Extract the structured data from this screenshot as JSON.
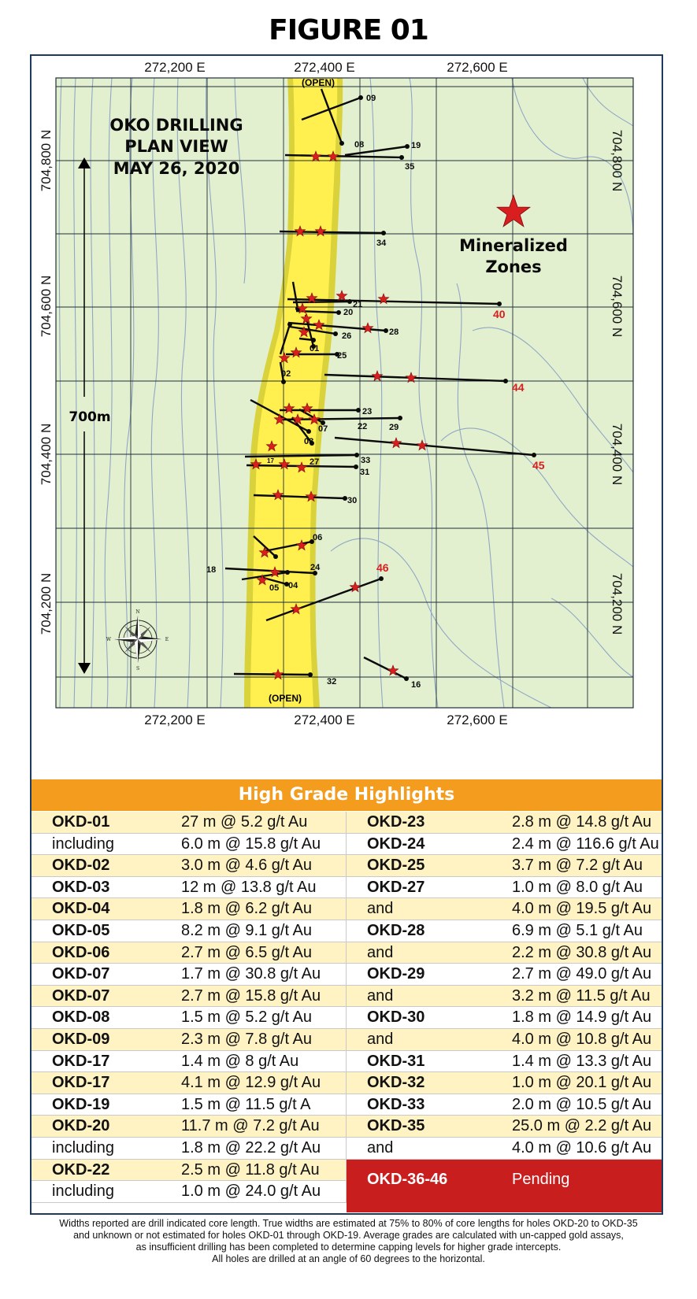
{
  "figure_title": "FIGURE 01",
  "map": {
    "title_lines": [
      "OKO DRILLING",
      "PLAN VIEW",
      "MAY 26, 2020"
    ],
    "scale_label": "700m",
    "legend_label_lines": [
      "Mineralized",
      "Zones"
    ],
    "open_label": "(OPEN)",
    "easting_labels": [
      "272,200 E",
      "272,400 E",
      "272,600 E"
    ],
    "northing_labels": [
      "704,800 N",
      "704,600 N",
      "704,400 N",
      "704,200 N"
    ],
    "compass_letters": [
      "N",
      "E",
      "S",
      "W"
    ],
    "colors": {
      "background": "#e3f0d0",
      "zone_outer": "#d9d23a",
      "zone_inner": "#ffef4f",
      "contour": "#8fa7c4",
      "grid": "#1f2e3a",
      "star": "#d81e1e",
      "pending_label": "#d81e1e"
    },
    "drill_holes": [
      "09",
      "08",
      "19",
      "35",
      "34",
      "21",
      "40",
      "20",
      "28",
      "26",
      "01",
      "25",
      "02",
      "44",
      "23",
      "22",
      "29",
      "07",
      "03",
      "45",
      "33",
      "17",
      "27",
      "31",
      "30",
      "06",
      "18",
      "24",
      "05",
      "04",
      "46",
      "32",
      "16"
    ],
    "pending_holes": [
      "40",
      "44",
      "45",
      "46"
    ]
  },
  "highlights": {
    "header": "High Grade Highlights",
    "left": [
      {
        "hole": "OKD-01",
        "interval": "27 m @ 5.2 g/t Au"
      },
      {
        "hole": "including",
        "interval": "6.0 m @ 15.8 g/t Au"
      },
      {
        "hole": "OKD-02",
        "interval": "3.0 m @ 4.6 g/t Au"
      },
      {
        "hole": "OKD-03",
        "interval": "12 m @ 13.8 g/t Au"
      },
      {
        "hole": "OKD-04",
        "interval": "1.8 m @ 6.2 g/t Au"
      },
      {
        "hole": "OKD-05",
        "interval": "8.2 m @ 9.1 g/t Au"
      },
      {
        "hole": "OKD-06",
        "interval": "2.7 m @ 6.5 g/t Au"
      },
      {
        "hole": "OKD-07",
        "interval": "1.7 m @ 30.8 g/t Au"
      },
      {
        "hole": "OKD-07",
        "interval": "2.7 m @ 15.8 g/t Au"
      },
      {
        "hole": "OKD-08",
        "interval": "1.5 m @ 5.2 g/t Au"
      },
      {
        "hole": "OKD-09",
        "interval": "2.3 m @ 7.8 g/t Au"
      },
      {
        "hole": "OKD-17",
        "interval": "1.4 m @ 8 g/t Au"
      },
      {
        "hole": "OKD-17",
        "interval": "4.1 m @ 12.9 g/t Au"
      },
      {
        "hole": "OKD-19",
        "interval": "1.5 m @ 11.5 g/t A"
      },
      {
        "hole": "OKD-20",
        "interval": "11.7 m @ 7.2 g/t Au"
      },
      {
        "hole": "including",
        "interval": "1.8 m @ 22.2 g/t Au"
      },
      {
        "hole": "OKD-22",
        "interval": "2.5 m @ 11.8 g/t Au"
      },
      {
        "hole": "including",
        "interval": "1.0 m @ 24.0 g/t Au"
      }
    ],
    "right": [
      {
        "hole": "OKD-23",
        "interval": "2.8 m @ 14.8 g/t Au"
      },
      {
        "hole": "OKD-24",
        "interval": "2.4 m @ 116.6 g/t Au"
      },
      {
        "hole": "OKD-25",
        "interval": "3.7 m @ 7.2  g/t Au"
      },
      {
        "hole": "OKD-27",
        "interval": "1.0 m @ 8.0 g/t Au"
      },
      {
        "hole": "and",
        "interval": "4.0 m @ 19.5 g/t Au"
      },
      {
        "hole": "OKD-28",
        "interval": "6.9 m @ 5.1 g/t Au"
      },
      {
        "hole": "and",
        "interval": "2.2 m @ 30.8 g/t Au"
      },
      {
        "hole": "OKD-29",
        "interval": "2.7 m @ 49.0 g/t Au"
      },
      {
        "hole": "and",
        "interval": "3.2 m @ 11.5 g/t Au"
      },
      {
        "hole": "OKD-30",
        "interval": "1.8 m @ 14.9 g/t Au"
      },
      {
        "hole": "and",
        "interval": "4.0 m @ 10.8 g/t Au"
      },
      {
        "hole": "OKD-31",
        "interval": "1.4 m @ 13.3 g/t Au"
      },
      {
        "hole": "OKD-32",
        "interval": "1.0 m @ 20.1 g/t Au"
      },
      {
        "hole": "OKD-33",
        "interval": "2.0 m @ 10.5 g/t Au"
      },
      {
        "hole": "OKD-35",
        "interval": "25.0 m @ 2.2 g/t Au"
      },
      {
        "hole": "and",
        "interval": "4.0 m @ 10.6 g/t Au"
      }
    ],
    "pending": {
      "hole": "OKD-36-46",
      "status": "Pending"
    }
  },
  "footnote": [
    "Widths reported are drill indicated core length. True widths are estimated at 75% to 80% of core lengths for holes OKD-20 to OKD-35",
    "and unknown or not estimated for holes OKD-01 through OKD-19. Average grades are calculated with un-capped gold assays,",
    "as insufficient drilling has been completed to determine capping levels for higher grade intercepts.",
    "All holes are drilled at an angle of 60 degrees to the horizontal."
  ]
}
